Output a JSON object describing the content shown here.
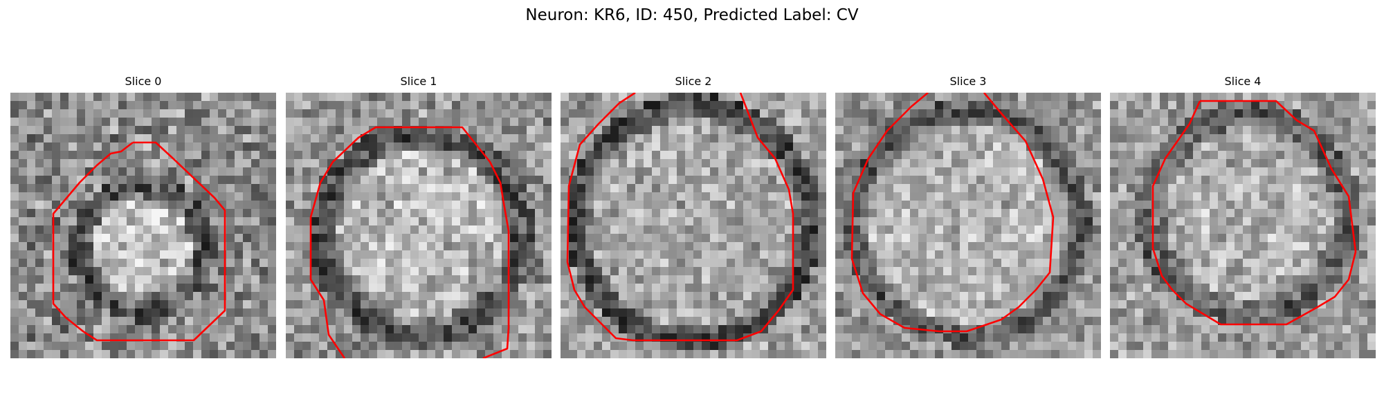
{
  "figure": {
    "title": "Neuron: KR6, ID: 450, Predicted Label: CV"
  },
  "colors": {
    "background": "#ffffff",
    "contour": "#ff0000",
    "pixel_gray_low": "#2a2a2a",
    "pixel_gray_high": "#f4f4f4"
  },
  "panels": [
    {
      "title": "Slice 0",
      "contour": "red segmentation outline, partial ring"
    },
    {
      "title": "Slice 1",
      "contour": "red segmentation outline, open at bottom"
    },
    {
      "title": "Slice 2",
      "contour": "red segmentation outline, open at top"
    },
    {
      "title": "Slice 3",
      "contour": "red segmentation outline, open at top"
    },
    {
      "title": "Slice 4",
      "contour": "red segmentation outline, closed"
    }
  ]
}
